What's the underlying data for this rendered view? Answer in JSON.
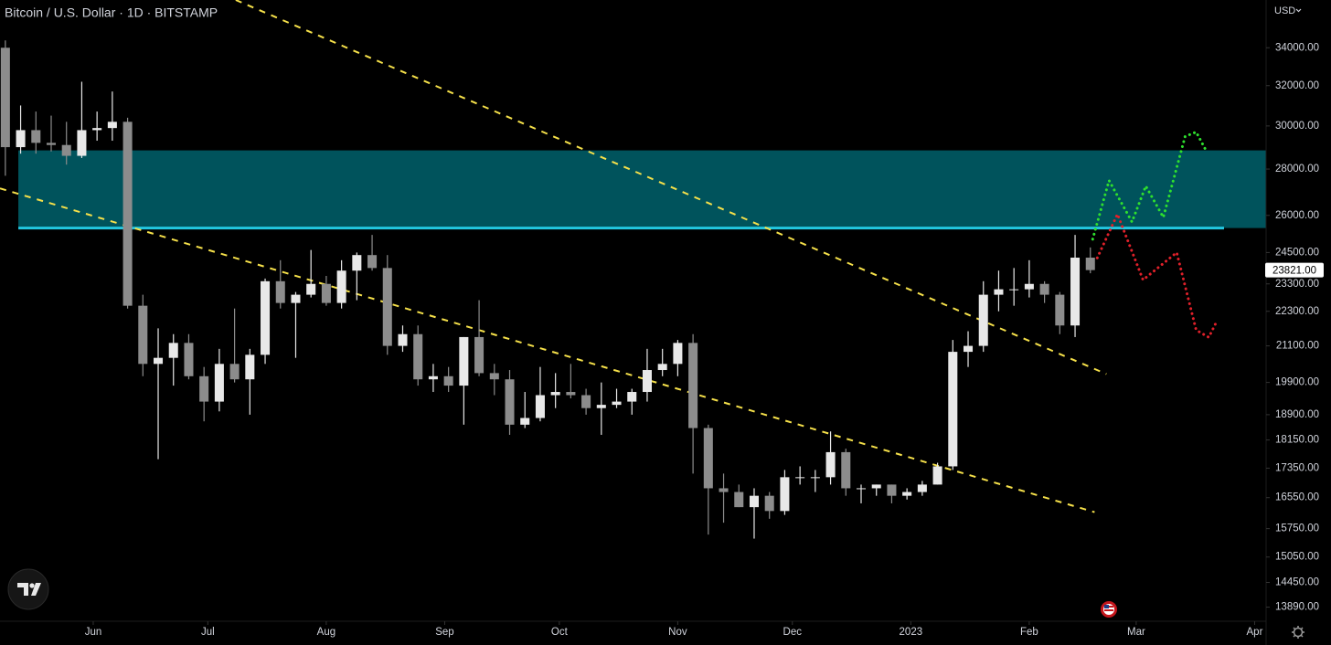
{
  "chart_data": {
    "type": "candlestick",
    "title": "Bitcoin / U.S. Dollar · 1D · BITSTAMP",
    "currency": "USD",
    "log_scale": true,
    "up_color": "#e8e8e8",
    "down_color": "#8c8c8c",
    "x": [
      -23,
      -19,
      -15,
      -11,
      -7,
      -3,
      1,
      5,
      9,
      13,
      17,
      21,
      25,
      29,
      33,
      37,
      41,
      45,
      49,
      53,
      57,
      61,
      65,
      69,
      73,
      77,
      81,
      85,
      89,
      93,
      97,
      101,
      105,
      109,
      113,
      117,
      121,
      125,
      129,
      133,
      137,
      141,
      145,
      149,
      153,
      157,
      161,
      165,
      169,
      173,
      177,
      181,
      185,
      189,
      193,
      197,
      201,
      205,
      209,
      213,
      217,
      221,
      225,
      229,
      233,
      237,
      241,
      245,
      249,
      253,
      257,
      261
    ],
    "open": [
      34000,
      29000,
      29800,
      29200,
      29100,
      28600,
      29800,
      29900,
      30200,
      22500,
      20500,
      20700,
      21200,
      20100,
      19300,
      20500,
      20000,
      20800,
      23400,
      22600,
      22900,
      23300,
      22600,
      23800,
      24400,
      23900,
      21100,
      21500,
      20000,
      20100,
      19800,
      21400,
      20200,
      20000,
      18600,
      18800,
      19500,
      19600,
      19500,
      19100,
      19200,
      19300,
      19600,
      20300,
      20500,
      21200,
      18500,
      16800,
      16700,
      16300,
      16600,
      16200,
      17100,
      17100,
      17100,
      17800,
      16800,
      16800,
      16900,
      16600,
      16700,
      16900,
      17400,
      20900,
      21100,
      22900,
      23100,
      23100,
      23300,
      22900,
      21800,
      24300
    ],
    "high": [
      34400,
      31000,
      30700,
      30500,
      30200,
      32200,
      30700,
      31700,
      30400,
      22900,
      21700,
      21500,
      21500,
      20400,
      21000,
      22400,
      21000,
      23500,
      24200,
      23000,
      24600,
      23600,
      24200,
      24500,
      25200,
      24400,
      21800,
      21800,
      20500,
      20400,
      21400,
      22700,
      20500,
      20300,
      19600,
      20400,
      20200,
      20500,
      19700,
      19900,
      19700,
      19700,
      21000,
      21000,
      21300,
      21500,
      18600,
      17200,
      16900,
      16800,
      16700,
      17300,
      17400,
      17300,
      18400,
      17900,
      16900,
      16900,
      16900,
      16800,
      17000,
      17500,
      21300,
      21600,
      23400,
      23800,
      23900,
      24200,
      23400,
      23000,
      25200,
      24700
    ],
    "low": [
      27700,
      28700,
      28700,
      28800,
      28200,
      28500,
      29300,
      29300,
      22400,
      20100,
      17600,
      19800,
      20000,
      18700,
      19000,
      19900,
      18900,
      20500,
      22400,
      20700,
      22800,
      22500,
      22400,
      22700,
      23800,
      20800,
      20900,
      19800,
      19600,
      19600,
      18600,
      20100,
      19500,
      18300,
      18500,
      18700,
      19100,
      19400,
      18900,
      18300,
      19100,
      18900,
      19300,
      20100,
      20100,
      17200,
      15600,
      15900,
      16300,
      15500,
      16000,
      16100,
      16900,
      16700,
      16900,
      16600,
      16400,
      16600,
      16400,
      16500,
      16600,
      16900,
      17300,
      20400,
      20900,
      22300,
      22500,
      22800,
      22600,
      21500,
      21400,
      23700
    ],
    "close": [
      29000,
      29800,
      29200,
      29100,
      28600,
      29800,
      29900,
      30200,
      22500,
      20500,
      20700,
      21200,
      20100,
      19300,
      20500,
      20000,
      20800,
      23400,
      22600,
      22900,
      23300,
      22600,
      23800,
      24400,
      23900,
      21100,
      21500,
      20000,
      20100,
      19800,
      21400,
      20200,
      20000,
      18600,
      18800,
      19500,
      19600,
      19500,
      19100,
      19200,
      19300,
      19600,
      20300,
      20500,
      21200,
      18500,
      16800,
      16700,
      16300,
      16600,
      16200,
      17100,
      17100,
      17100,
      17800,
      16800,
      16800,
      16900,
      16600,
      16700,
      16900,
      17400,
      20900,
      21100,
      22900,
      23100,
      23100,
      23300,
      22900,
      21800,
      24300,
      23821
    ],
    "last_price": {
      "value": 23821,
      "label": "23821.00"
    },
    "xlim": [
      -24.4,
      307
    ],
    "xticks": [
      {
        "value": 0,
        "label": "Jun"
      },
      {
        "value": 30,
        "label": "Jul"
      },
      {
        "value": 61,
        "label": "Aug"
      },
      {
        "value": 92,
        "label": "Sep"
      },
      {
        "value": 122,
        "label": "Oct"
      },
      {
        "value": 153,
        "label": "Nov"
      },
      {
        "value": 183,
        "label": "Dec"
      },
      {
        "value": 214,
        "label": "2023"
      },
      {
        "value": 245,
        "label": "Feb"
      },
      {
        "value": 273,
        "label": "Mar"
      },
      {
        "value": 304,
        "label": "Apr"
      }
    ],
    "ylim": [
      13580,
      36700
    ],
    "yticks": [
      {
        "value": 34000,
        "label": "34000.00"
      },
      {
        "value": 32000,
        "label": "32000.00"
      },
      {
        "value": 30000,
        "label": "30000.00"
      },
      {
        "value": 28000,
        "label": "28000.00"
      },
      {
        "value": 26000,
        "label": "26000.00"
      },
      {
        "value": 24500,
        "label": "24500.00"
      },
      {
        "value": 23300,
        "label": "23300.00"
      },
      {
        "value": 22300,
        "label": "22300.00"
      },
      {
        "value": 21100,
        "label": "21100.00"
      },
      {
        "value": 19900,
        "label": "19900.00"
      },
      {
        "value": 18900,
        "label": "18900.00"
      },
      {
        "value": 18150,
        "label": "18150.00"
      },
      {
        "value": 17350,
        "label": "17350.00"
      },
      {
        "value": 16550,
        "label": "16550.00"
      },
      {
        "value": 15750,
        "label": "15750.00"
      },
      {
        "value": 15050,
        "label": "15050.00"
      },
      {
        "value": 14450,
        "label": "14450.00"
      },
      {
        "value": 13890,
        "label": "13890.00"
      }
    ],
    "zone": {
      "range": [
        25480,
        28850
      ],
      "x": [
        -19.6,
        307
      ],
      "color": "#00535c"
    },
    "level": {
      "value": 25480,
      "x": [
        -19.6,
        296
      ],
      "color": "#22c7e0"
    },
    "trendlines": [
      {
        "x": [
          37.3,
          265.2
        ],
        "y": [
          36700,
          20170
        ],
        "color": "#f5e04a"
      },
      {
        "x": [
          -24.4,
          262.1
        ],
        "y": [
          27150,
          16170
        ],
        "color": "#f5e04a"
      }
    ],
    "projections": [
      {
        "color": "#2ee02e",
        "x": [
          261.6,
          265.9,
          271.9,
          275.5,
          280.1,
          285.8,
          288.7,
          291.0
        ],
        "y": [
          25030,
          27490,
          25730,
          27250,
          25920,
          29500,
          29710,
          28940
        ]
      },
      {
        "color": "#e0202a",
        "x": [
          262.8,
          268.1,
          274.8,
          283.6,
          288.7,
          292.0,
          293.9
        ],
        "y": [
          24290,
          26050,
          23450,
          24500,
          21640,
          21390,
          21900
        ]
      }
    ]
  }
}
